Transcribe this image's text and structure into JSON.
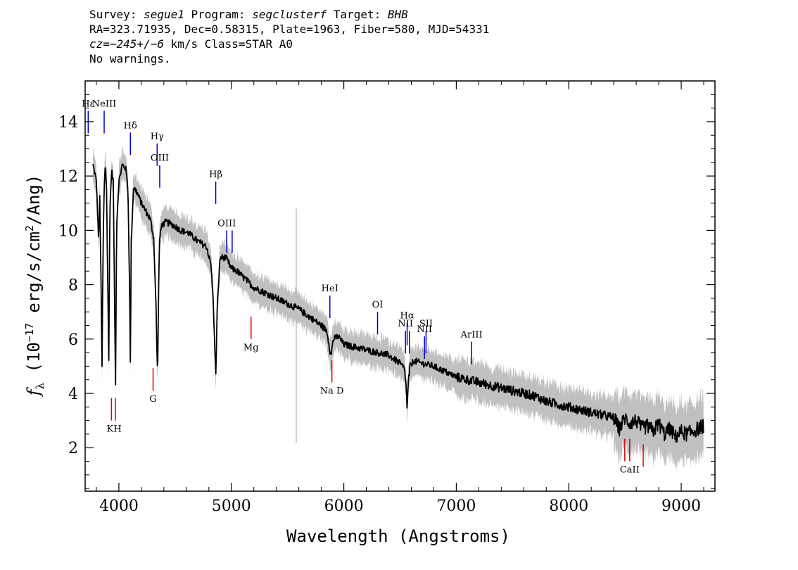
{
  "header": {
    "line1": {
      "survey_label": "Survey: ",
      "survey": "segue1",
      "program_label": " Program: ",
      "program": "segclusterf",
      "target_label": " Target: ",
      "target": "BHB"
    },
    "line2": "RA=323.71935, Dec=0.58315, Plate=1963, Fiber=580, MJD=54331",
    "line3": {
      "cz": "cz=−245+/−6",
      "rest": " km/s Class=STAR A0"
    },
    "line4": "No warnings."
  },
  "chart_data": {
    "type": "line",
    "xlabel": "Wavelength (Angstroms)",
    "ylabel": "f_λ (10^-17 erg/s/cm^2/Ang)",
    "xlim": [
      3700,
      9300
    ],
    "ylim": [
      0.4,
      15.5
    ],
    "x_ticks": [
      4000,
      5000,
      6000,
      7000,
      8000,
      9000
    ],
    "y_ticks": [
      2,
      4,
      6,
      8,
      10,
      12,
      14
    ],
    "series": [
      {
        "role": "flux",
        "color": "#000000",
        "x": [
          3770,
          3800,
          3820,
          3830,
          3840,
          3850,
          3860,
          3870,
          3880,
          3890,
          3900,
          3910,
          3920,
          3935,
          3950,
          3960,
          3970,
          3980,
          4000,
          4030,
          4060,
          4080,
          4095,
          4102,
          4110,
          4130,
          4160,
          4200,
          4240,
          4280,
          4310,
          4330,
          4340,
          4345,
          4350,
          4360,
          4380,
          4420,
          4480,
          4550,
          4620,
          4700,
          4780,
          4820,
          4840,
          4861,
          4875,
          4900,
          4950,
          5000,
          5050,
          5100,
          5150,
          5200,
          5300,
          5400,
          5500,
          5600,
          5700,
          5800,
          5850,
          5880,
          5890,
          5896,
          5910,
          5950,
          6000,
          6100,
          6200,
          6300,
          6400,
          6500,
          6540,
          6555,
          6563,
          6575,
          6590,
          6620,
          6700,
          6800,
          6900,
          7000,
          7100,
          7200,
          7300,
          7400,
          7500,
          7600,
          7700,
          7800,
          7900,
          8000,
          8100,
          8200,
          8300,
          8400,
          8450,
          8500,
          8540,
          8600,
          8650,
          8700,
          8750,
          8800,
          8850,
          8900,
          8950,
          9000,
          9050,
          9100,
          9150,
          9200
        ],
        "y": [
          12.4,
          11.8,
          9.6,
          11.2,
          8.5,
          5.0,
          9.6,
          11.6,
          12.5,
          11.6,
          8.4,
          5.2,
          10.8,
          12.2,
          11.8,
          8.0,
          4.3,
          10.2,
          11.8,
          12.4,
          12.3,
          11.6,
          8.0,
          5.1,
          9.6,
          11.6,
          11.4,
          11.0,
          10.7,
          10.4,
          9.7,
          7.2,
          5.2,
          4.7,
          6.8,
          9.6,
          10.2,
          10.3,
          10.2,
          10.0,
          9.9,
          9.6,
          9.4,
          8.7,
          7.3,
          4.6,
          7.2,
          9.0,
          9.0,
          8.6,
          8.5,
          8.3,
          8.1,
          7.9,
          7.7,
          7.5,
          7.3,
          7.1,
          6.8,
          6.5,
          6.3,
          5.5,
          5.4,
          5.8,
          6.0,
          6.1,
          5.8,
          5.7,
          5.6,
          5.5,
          5.4,
          5.1,
          4.9,
          4.2,
          3.4,
          4.5,
          5.0,
          5.2,
          5.1,
          5.0,
          4.8,
          4.6,
          4.5,
          4.4,
          4.3,
          4.2,
          4.1,
          4.0,
          3.9,
          3.7,
          3.6,
          3.5,
          3.4,
          3.3,
          3.2,
          3.1,
          2.7,
          3.1,
          2.9,
          3.0,
          2.7,
          2.8,
          2.6,
          2.9,
          2.5,
          2.7,
          2.4,
          2.6,
          2.5,
          2.6,
          2.7,
          2.8
        ]
      },
      {
        "role": "flux-error-band",
        "color": "#c0c0c0"
      }
    ],
    "emission_lines": [
      {
        "label": "Hε",
        "x": 3727,
        "y": 14.4,
        "color": "#0000cc"
      },
      {
        "label": "NeIII",
        "x": 3869,
        "y": 14.4,
        "color": "#0000cc"
      },
      {
        "label": "Hδ",
        "x": 4102,
        "y": 13.6,
        "color": "#0000cc"
      },
      {
        "label": "Hγ",
        "x": 4340,
        "y": 13.2,
        "color": "#0000cc"
      },
      {
        "label": "OIII",
        "x": 4363,
        "y": 12.4,
        "color": "#0000cc"
      },
      {
        "label": "Hβ",
        "x": 4861,
        "y": 11.8,
        "color": "#0000cc"
      },
      {
        "label": "OIII",
        "x": 4959,
        "y": 10.0,
        "color": "#0000cc"
      },
      {
        "label": "",
        "x": 5007,
        "y": 10.0,
        "color": "#0000cc"
      },
      {
        "label": "HeI",
        "x": 5876,
        "y": 7.6,
        "color": "#0000cc"
      },
      {
        "label": "OI",
        "x": 6300,
        "y": 7.0,
        "color": "#0000cc"
      },
      {
        "label": "NII",
        "x": 6548,
        "y": 6.3,
        "color": "#0000cc"
      },
      {
        "label": "Hα",
        "x": 6563,
        "y": 6.6,
        "color": "#0000cc"
      },
      {
        "label": "",
        "x": 6583,
        "y": 6.3,
        "color": "#0000cc"
      },
      {
        "label": "NII",
        "x": 6717,
        "y": 6.1,
        "color": "#0000cc"
      },
      {
        "label": "SII",
        "x": 6731,
        "y": 6.3,
        "color": "#0000cc"
      },
      {
        "label": "ArIII",
        "x": 7136,
        "y": 5.9,
        "color": "#0000cc"
      }
    ],
    "absorption_lines": [
      {
        "label": "K",
        "x": 3934,
        "y": 3.0,
        "color": "#dd0000"
      },
      {
        "label": "H",
        "x": 3969,
        "y": 3.0,
        "color": "#dd0000"
      },
      {
        "label": "G",
        "x": 4304,
        "y": 4.1,
        "color": "#dd0000"
      },
      {
        "label": "Mg",
        "x": 5175,
        "y": 6.0,
        "color": "#dd0000"
      },
      {
        "label": "Na D",
        "x": 5894,
        "y": 4.4,
        "color": "#dd0000"
      },
      {
        "label": "",
        "x": 8498,
        "y": 1.5,
        "color": "#dd0000"
      },
      {
        "label": "CaII",
        "x": 8542,
        "y": 1.5,
        "color": "#dd0000"
      },
      {
        "label": "",
        "x": 8662,
        "y": 1.3,
        "color": "#dd0000"
      }
    ]
  }
}
